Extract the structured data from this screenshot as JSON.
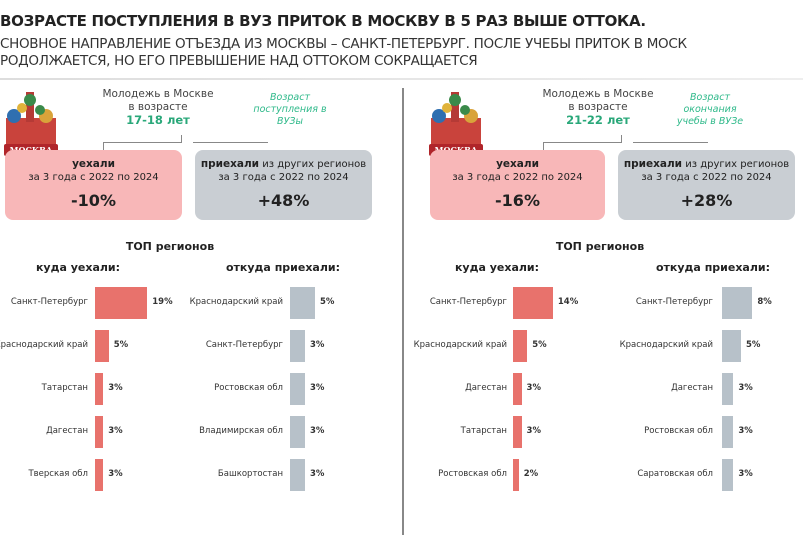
{
  "header": {
    "title": "ВОЗРАСТЕ ПОСТУПЛЕНИЯ В ВУЗ ПРИТОК В МОСКВУ В 5 РАЗ ВЫШЕ ОТТОКА.",
    "subtitle_line1": "СНОВНОЕ НАПРАВЛЕНИЕ ОТЪЕЗДА ИЗ МОСКВЫ – САНКТ-ПЕТЕРБУРГ. ПОСЛЕ УЧЕБЫ ПРИТОК В МОСК",
    "subtitle_line2": "РОДОЛЖАЕТСЯ, НО ЕГО ПРЕВЫШЕНИЕ НАД ОТТОКОМ СОКРАЩАЕТСЯ"
  },
  "colors": {
    "out": "#e8726c",
    "in": "#b7c1c9",
    "accent": "#2aa87a"
  },
  "icon_text": "МОСКВА",
  "panels": [
    {
      "youth": "Молодежь в Москве в возрасте",
      "age": "17-18 лет",
      "note": "Возраст поступления в ВУЗы",
      "left_box": {
        "bold": "уехали",
        "period": "за 3 года с 2022 по 2024",
        "value": "-10%"
      },
      "right_box": {
        "bold": "приехали",
        "rest": " из других регионов",
        "period": "за 3 года с 2022 по 2024",
        "value": "+48%"
      },
      "top_title": "ТОП регионов",
      "out_title": "куда уехали:",
      "in_title": "откуда приехали:"
    },
    {
      "youth": "Молодежь в Москве в возрасте",
      "age": "21-22 лет",
      "note": "Возраст окончания учебы в ВУЗе",
      "left_box": {
        "bold": "уехали",
        "period": "за 3 года с 2022 по 2024",
        "value": "-16%"
      },
      "right_box": {
        "bold": "приехали",
        "rest": " из других регионов",
        "period": "за 3 года с 2022 по 2024",
        "value": "+28%"
      },
      "top_title": "ТОП регионов",
      "out_title": "куда уехали:",
      "in_title": "откуда приехали:"
    }
  ],
  "chart_data": [
    {
      "type": "bar",
      "orientation": "horizontal",
      "title": "куда уехали:",
      "categories": [
        "Санкт-Петербург",
        "Краснодарский край",
        "Татарстан",
        "Дагестан",
        "Тверская обл"
      ],
      "values": [
        19,
        5,
        3,
        3,
        3
      ],
      "labels": [
        "19%",
        "5%",
        "3%",
        "3%",
        "3%"
      ],
      "unit": "%"
    },
    {
      "type": "bar",
      "orientation": "horizontal",
      "title": "откуда приехали:",
      "categories": [
        "Краснодарский край",
        "Санкт-Петербург",
        "Ростовская обл",
        "Владимирская обл",
        "Башкортостан"
      ],
      "values": [
        5,
        3,
        3,
        3,
        3
      ],
      "labels": [
        "5%",
        "3%",
        "3%",
        "3%",
        "3%"
      ],
      "unit": "%"
    },
    {
      "type": "bar",
      "orientation": "horizontal",
      "title": "куда уехали:",
      "categories": [
        "Санкт-Петербург",
        "Краснодарский край",
        "Дагестан",
        "Татарстан",
        "Ростовская обл"
      ],
      "values": [
        14,
        5,
        3,
        3,
        2
      ],
      "labels": [
        "14%",
        "5%",
        "3%",
        "3%",
        "2%"
      ],
      "unit": "%"
    },
    {
      "type": "bar",
      "orientation": "horizontal",
      "title": "откуда приехали:",
      "categories": [
        "Санкт-Петербург",
        "Краснодарский край",
        "Дагестан",
        "Ростовская обл",
        "Саратовская обл"
      ],
      "values": [
        8,
        5,
        3,
        3,
        3
      ],
      "labels": [
        "8%",
        "5%",
        "3%",
        "3%",
        "3%"
      ],
      "unit": "%"
    }
  ]
}
